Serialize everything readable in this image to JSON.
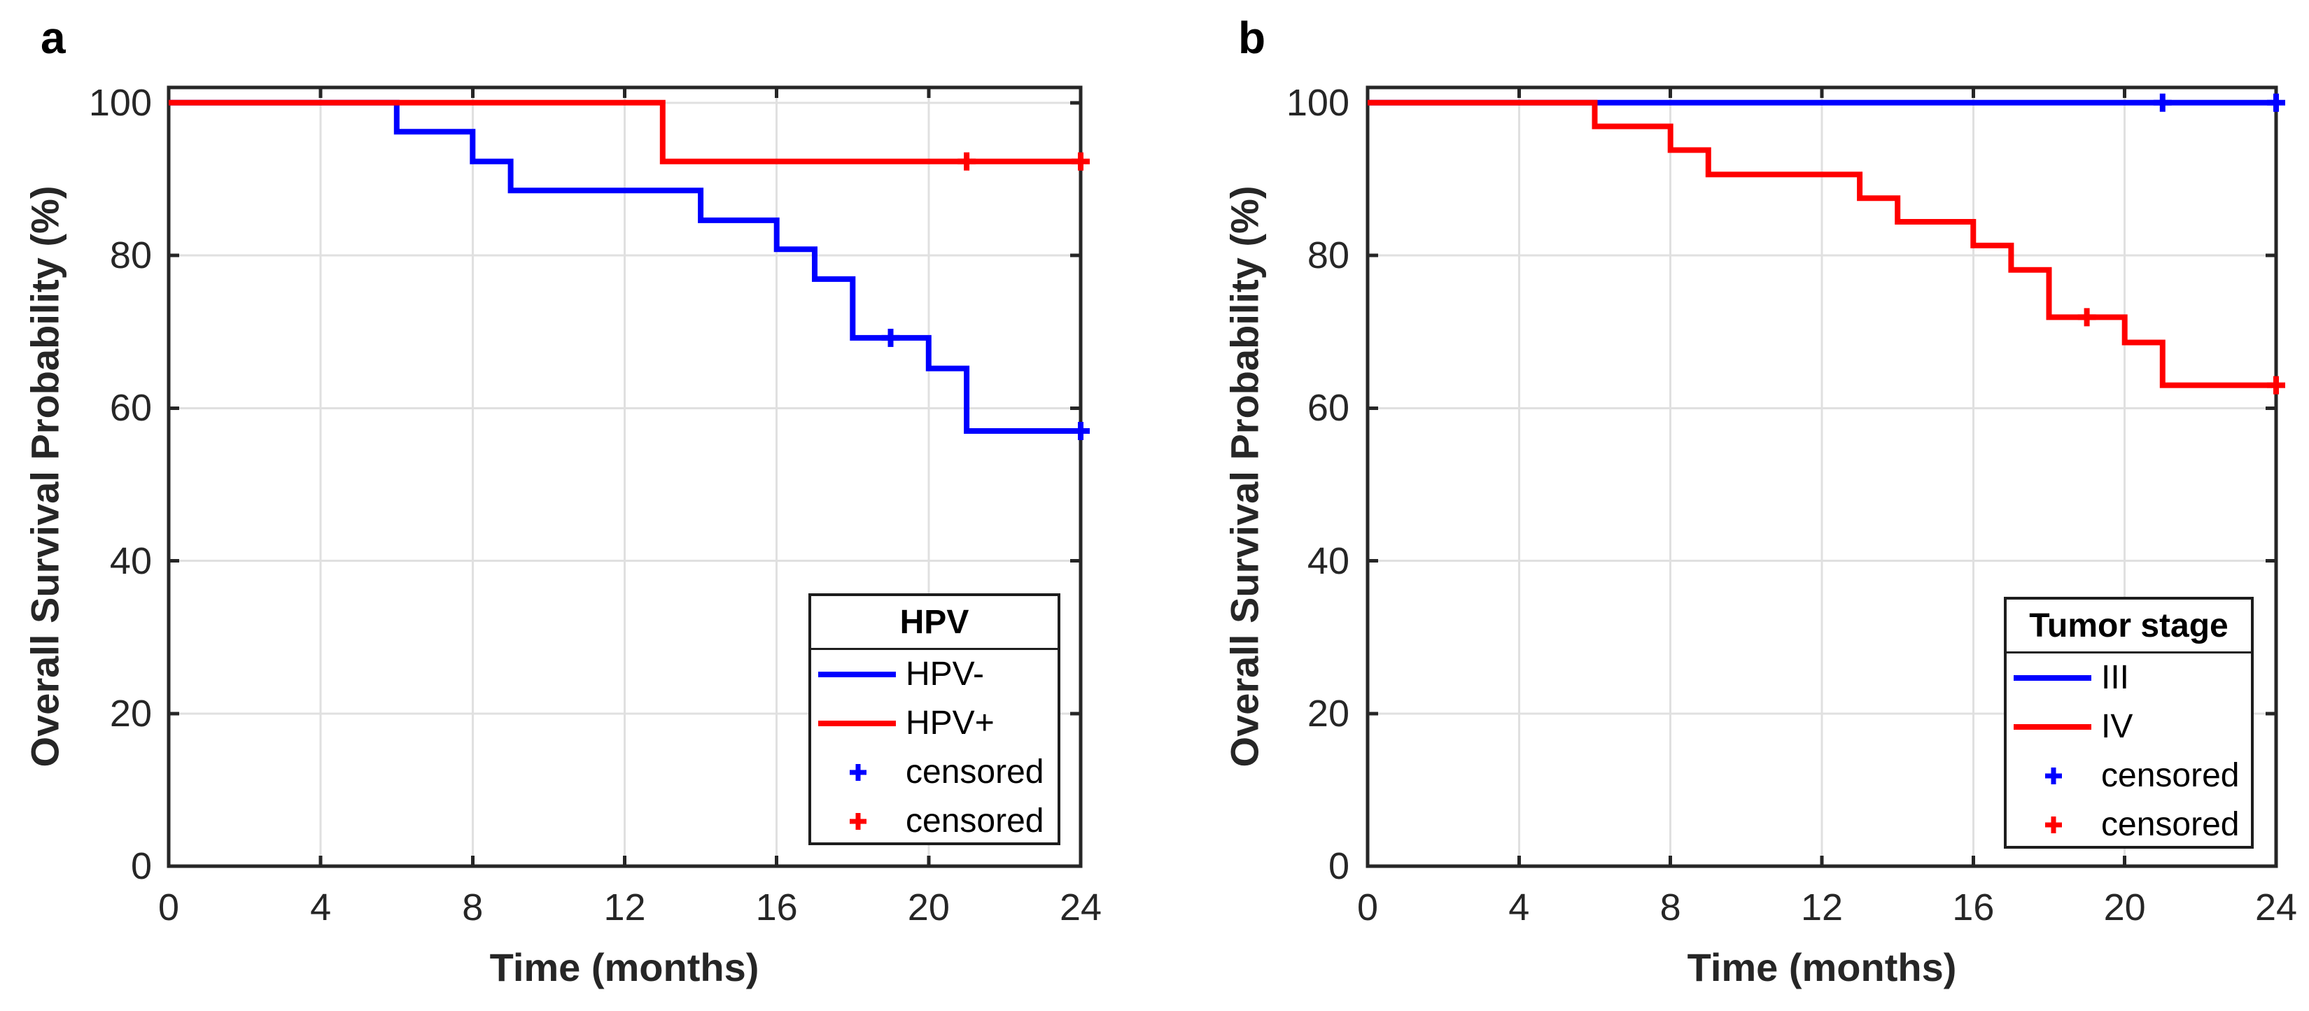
{
  "figure": {
    "background": "#ffffff",
    "axis_color": "#262626",
    "grid_color": "#e0e0e0"
  },
  "chart_data": [
    {
      "panel_label": "a",
      "type": "line",
      "subtype": "kaplan-meier-step",
      "title": "",
      "xlabel": "Time (months)",
      "ylabel": "Overall Survival Probability (%)",
      "xlim": [
        0,
        24
      ],
      "ylim": [
        0,
        102
      ],
      "xticks": [
        0,
        4,
        8,
        12,
        16,
        20,
        24
      ],
      "yticks": [
        0,
        20,
        40,
        60,
        80,
        100
      ],
      "grid": true,
      "legend": {
        "title": "HPV",
        "position": "lower-right",
        "censored_label": "censored",
        "censored_marker": "+"
      },
      "series": [
        {
          "name": "HPV-",
          "color": "#0000ff",
          "step_points": [
            [
              0,
              100
            ],
            [
              6,
              96.2
            ],
            [
              8,
              92.3
            ],
            [
              9,
              88.5
            ],
            [
              14,
              84.6
            ],
            [
              16,
              80.8
            ],
            [
              17,
              76.9
            ],
            [
              18,
              69.2
            ],
            [
              20,
              65.2
            ],
            [
              21,
              57.0
            ],
            [
              24,
              57.0
            ]
          ],
          "censored": [
            [
              19,
              69.2
            ],
            [
              24,
              57.0
            ]
          ]
        },
        {
          "name": "HPV+",
          "color": "#ff0000",
          "step_points": [
            [
              0,
              100
            ],
            [
              13,
              92.3
            ],
            [
              24,
              92.3
            ]
          ],
          "censored": [
            [
              21,
              92.3
            ],
            [
              24,
              92.3
            ]
          ]
        }
      ]
    },
    {
      "panel_label": "b",
      "type": "line",
      "subtype": "kaplan-meier-step",
      "title": "",
      "xlabel": "Time (months)",
      "ylabel": "Overall Survival Probability (%)",
      "xlim": [
        0,
        24
      ],
      "ylim": [
        0,
        102
      ],
      "xticks": [
        0,
        4,
        8,
        12,
        16,
        20,
        24
      ],
      "yticks": [
        0,
        20,
        40,
        60,
        80,
        100
      ],
      "grid": true,
      "legend": {
        "title": "Tumor stage",
        "position": "lower-right",
        "censored_label": "censored",
        "censored_marker": "+"
      },
      "series": [
        {
          "name": "III",
          "color": "#0000ff",
          "step_points": [
            [
              0,
              100
            ],
            [
              24,
              100
            ]
          ],
          "censored": [
            [
              21,
              100
            ],
            [
              24,
              100
            ]
          ]
        },
        {
          "name": "IV",
          "color": "#ff0000",
          "step_points": [
            [
              0,
              100
            ],
            [
              6,
              96.9
            ],
            [
              8,
              93.8
            ],
            [
              9,
              90.6
            ],
            [
              13,
              87.5
            ],
            [
              14,
              84.4
            ],
            [
              16,
              81.3
            ],
            [
              17,
              78.1
            ],
            [
              18,
              71.9
            ],
            [
              20,
              68.6
            ],
            [
              21,
              63.0
            ],
            [
              24,
              63.0
            ]
          ],
          "censored": [
            [
              19,
              71.9
            ],
            [
              24,
              63.0
            ]
          ]
        }
      ]
    }
  ]
}
